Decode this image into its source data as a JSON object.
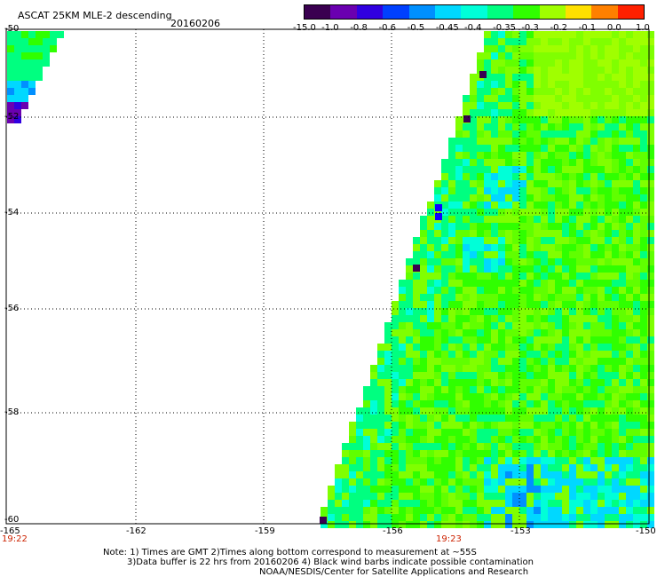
{
  "header": {
    "title": "ASCAT 25KM MLE-2 descending",
    "date": "20160206"
  },
  "colorbar": {
    "labels": [
      "-15.0",
      "-1.0",
      "-0.8",
      "-0.6",
      "-0.5",
      "-0.45",
      "-0.4",
      "-0.35",
      "-0.3",
      "-0.2",
      "-0.1",
      "0.0",
      "1.0"
    ],
    "colors": [
      "#3a0050",
      "#6a00b0",
      "#3000e0",
      "#0040ff",
      "#0090ff",
      "#00d8ff",
      "#00ffd8",
      "#00ff80",
      "#30ff00",
      "#a0ff00",
      "#ffe000",
      "#ff8000",
      "#ff2000"
    ]
  },
  "axes": {
    "lat_labels": [
      "-50",
      "-52",
      "-54",
      "-56",
      "-58",
      "-60"
    ],
    "lon_labels": [
      "-165",
      "-162",
      "-159",
      "-156",
      "-153",
      "-150"
    ]
  },
  "times": {
    "left": "19:22",
    "mid": "19:23"
  },
  "notes": {
    "line1": "Note: 1) Times are GMT 2)Times along bottom correspond to measurement at ~55S",
    "line2": "3)Data buffer is 22 hrs from 20160206 4) Black wind barbs indicate possible contamination",
    "line3": "NOAA/NESDIS/Center for Satellite Applications and Research"
  }
}
